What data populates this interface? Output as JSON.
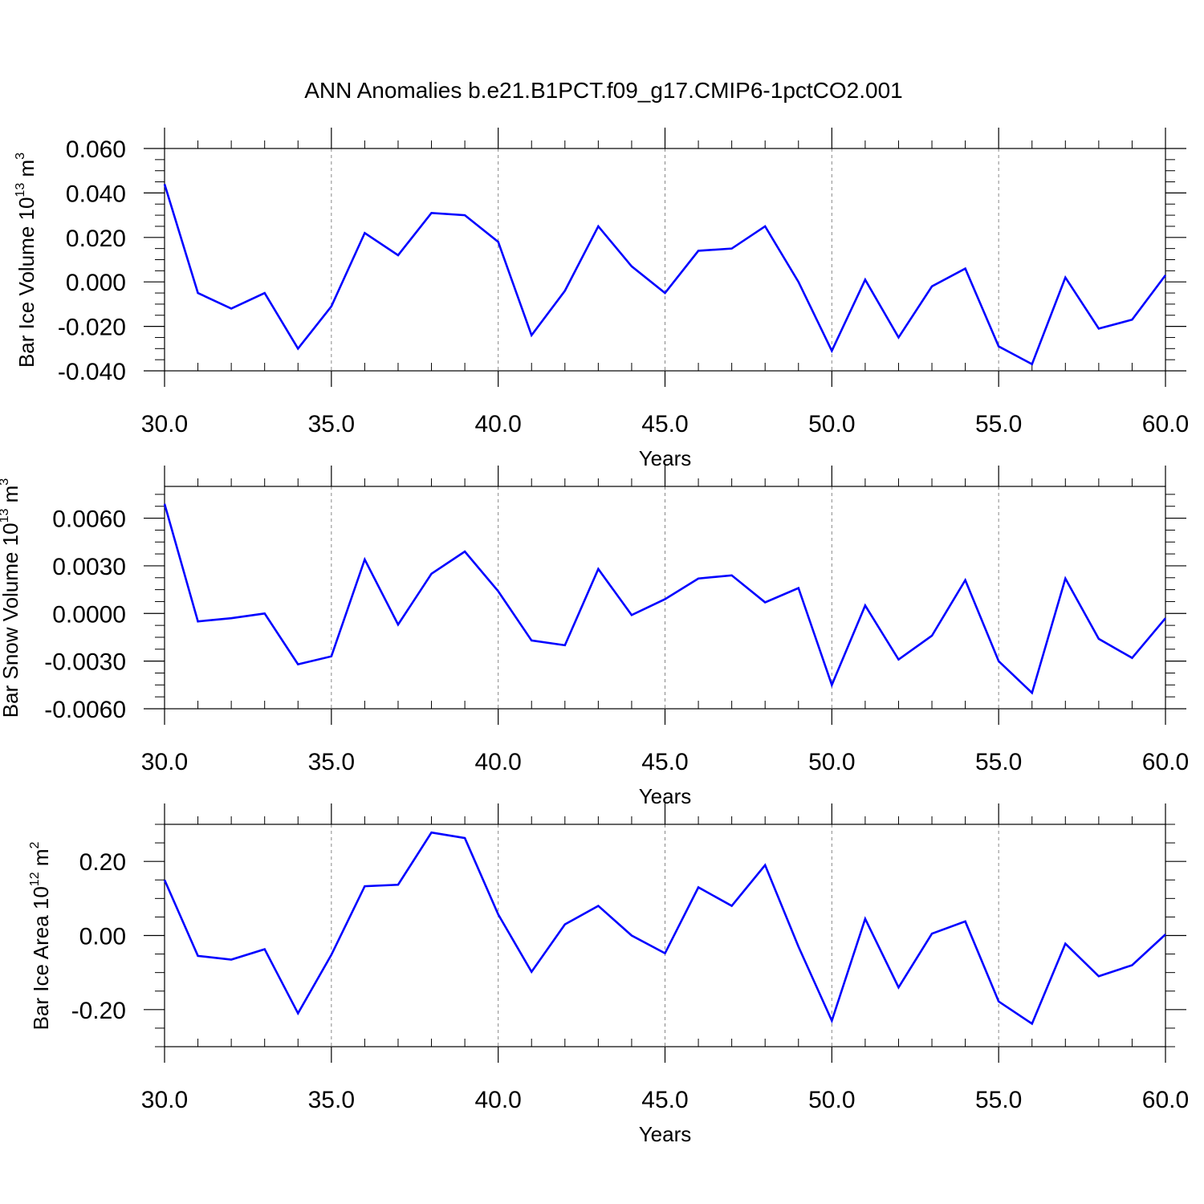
{
  "figure": {
    "title": "ANN Anomalies b.e21.B1PCT.f09_g17.CMIP6-1pctCO2.001"
  },
  "chart_data": [
    {
      "type": "line",
      "xlabel": "Years",
      "ylabel": {
        "text": "Bar Ice Volume 10",
        "exp": "13",
        "unit": " m",
        "unit_exp": "3"
      },
      "xlim": [
        30,
        60
      ],
      "ylim": [
        -0.04,
        0.06
      ],
      "xticks": [
        30,
        35,
        40,
        45,
        50,
        55,
        60
      ],
      "xtick_labels": [
        "30.0",
        "35.0",
        "40.0",
        "45.0",
        "50.0",
        "55.0",
        "60.0"
      ],
      "yticks": [
        -0.04,
        -0.02,
        0.0,
        0.02,
        0.04,
        0.06
      ],
      "ytick_labels": [
        "-0.040",
        "-0.020",
        "0.000",
        "0.020",
        "0.040",
        "0.060"
      ],
      "line_color": "#0000ff",
      "x": [
        30,
        31,
        32,
        33,
        34,
        35,
        36,
        37,
        38,
        39,
        40,
        41,
        42,
        43,
        44,
        45,
        46,
        47,
        48,
        49,
        50,
        51,
        52,
        53,
        54,
        55,
        56,
        57,
        58,
        59,
        60
      ],
      "y": [
        0.044,
        -0.005,
        -0.012,
        -0.005,
        -0.03,
        -0.011,
        0.022,
        0.012,
        0.031,
        0.03,
        0.018,
        -0.024,
        -0.004,
        0.025,
        0.007,
        -0.005,
        0.014,
        0.015,
        0.025,
        0.0,
        -0.031,
        0.001,
        -0.025,
        -0.002,
        0.006,
        -0.029,
        -0.037,
        0.002,
        -0.021,
        -0.017,
        0.003
      ]
    },
    {
      "type": "line",
      "xlabel": "Years",
      "ylabel": {
        "text": "Bar Snow Volume 10",
        "exp": "13",
        "unit": " m",
        "unit_exp": "3"
      },
      "xlim": [
        30,
        60
      ],
      "ylim": [
        -0.006,
        0.008
      ],
      "xticks": [
        30,
        35,
        40,
        45,
        50,
        55,
        60
      ],
      "xtick_labels": [
        "30.0",
        "35.0",
        "40.0",
        "45.0",
        "50.0",
        "55.0",
        "60.0"
      ],
      "yticks": [
        -0.006,
        -0.003,
        0.0,
        0.003,
        0.006
      ],
      "ytick_labels": [
        "-0.0060",
        "-0.0030",
        "0.0000",
        "0.0030",
        "0.0060"
      ],
      "line_color": "#0000ff",
      "x": [
        30,
        31,
        32,
        33,
        34,
        35,
        36,
        37,
        38,
        39,
        40,
        41,
        42,
        43,
        44,
        45,
        46,
        47,
        48,
        49,
        50,
        51,
        52,
        53,
        54,
        55,
        56,
        57,
        58,
        59,
        60
      ],
      "y": [
        0.0069,
        -0.0005,
        -0.0003,
        0.0,
        -0.0032,
        -0.0027,
        0.0034,
        -0.0007,
        0.0025,
        0.0039,
        0.0014,
        -0.0017,
        -0.002,
        0.0028,
        -0.0001,
        0.0009,
        0.0022,
        0.0024,
        0.0007,
        0.0016,
        -0.0045,
        0.0005,
        -0.0029,
        -0.0014,
        0.0021,
        -0.003,
        -0.005,
        0.0022,
        -0.0016,
        -0.0028,
        -0.0003
      ]
    },
    {
      "type": "line",
      "xlabel": "Years",
      "ylabel": {
        "text": "Bar Ice Area 10",
        "exp": "12",
        "unit": " m",
        "unit_exp": "2"
      },
      "xlim": [
        30,
        60
      ],
      "ylim": [
        -0.3,
        0.3
      ],
      "xticks": [
        30,
        35,
        40,
        45,
        50,
        55,
        60
      ],
      "xtick_labels": [
        "30.0",
        "35.0",
        "40.0",
        "45.0",
        "50.0",
        "55.0",
        "60.0"
      ],
      "yticks": [
        -0.2,
        0.0,
        0.2
      ],
      "ytick_labels": [
        "-0.20",
        "0.00",
        "0.20"
      ],
      "line_color": "#0000ff",
      "x": [
        30,
        31,
        32,
        33,
        34,
        35,
        36,
        37,
        38,
        39,
        40,
        41,
        42,
        43,
        44,
        45,
        46,
        47,
        48,
        49,
        50,
        51,
        52,
        53,
        54,
        55,
        56,
        57,
        58,
        59,
        60
      ],
      "y": [
        0.15,
        -0.055,
        -0.065,
        -0.037,
        -0.21,
        -0.052,
        0.133,
        0.137,
        0.278,
        0.263,
        0.057,
        -0.098,
        0.03,
        0.08,
        0.0,
        -0.048,
        0.13,
        0.08,
        0.19,
        -0.03,
        -0.23,
        0.045,
        -0.14,
        0.005,
        0.038,
        -0.178,
        -0.238,
        -0.022,
        -0.11,
        -0.08,
        0.003
      ]
    }
  ]
}
